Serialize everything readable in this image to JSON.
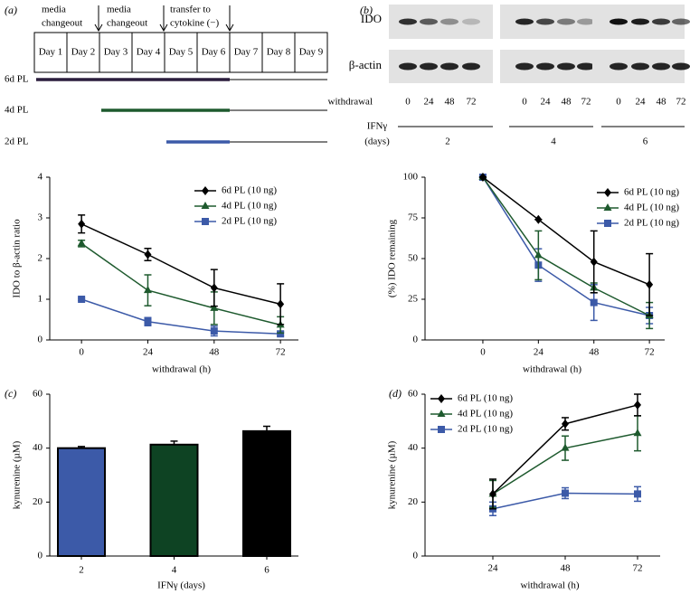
{
  "panel_a": {
    "panel_label": "(a)",
    "annotations": [
      [
        "media",
        "changeout"
      ],
      [
        "media",
        "changeout"
      ],
      [
        "transfer to",
        "cytokine (−)"
      ]
    ],
    "days": [
      "Day 1",
      "Day 2",
      "Day 3",
      "Day 4",
      "Day 5",
      "Day 6",
      "Day 7",
      "Day 8",
      "Day 9"
    ],
    "rows": [
      {
        "label": "6d PL",
        "color": "#2b1d3d"
      },
      {
        "label": "4d PL",
        "color": "#1e5a2e"
      },
      {
        "label": "2d PL",
        "color": "#3c5aa8"
      }
    ]
  },
  "panel_b": {
    "panel_label": "(b)",
    "rows": [
      "IDO",
      "β-actin"
    ],
    "withdrawal_label": "withdrawal",
    "groups": [
      {
        "lanes": [
          "0",
          "24",
          "48",
          "72"
        ],
        "label": "2"
      },
      {
        "lanes": [
          "0",
          "24",
          "48",
          "72"
        ],
        "label": "4"
      },
      {
        "lanes": [
          "0",
          "24",
          "48",
          "72"
        ],
        "label": "6"
      }
    ],
    "ifn_label": [
      "IFNγ",
      "(days)"
    ]
  },
  "chart_data": [
    {
      "type": "line",
      "y_label": "IDO to β-actin ratio",
      "x_label": "withdrawal  (h)",
      "x": [
        0,
        24,
        48,
        72
      ],
      "xlim": [
        -11.5,
        78.5
      ],
      "xticks": [
        0,
        24,
        48,
        72
      ],
      "ylim": [
        0,
        4
      ],
      "yticks": [
        0,
        1,
        2,
        3,
        4
      ],
      "series": [
        {
          "name": "6d PL (10 ng)",
          "color": "#000000",
          "marker": "diamond",
          "values": [
            2.85,
            2.1,
            1.28,
            0.88
          ],
          "errors": [
            0.22,
            0.15,
            0.45,
            0.5
          ]
        },
        {
          "name": "4d PL (10 ng)",
          "color": "#1e5a2e",
          "marker": "triangle",
          "values": [
            2.37,
            1.22,
            0.78,
            0.37
          ],
          "errors": [
            0.08,
            0.38,
            0.4,
            0.2
          ]
        },
        {
          "name": "2d PL (10 ng)",
          "color": "#3c5aa8",
          "marker": "square",
          "values": [
            1.0,
            0.45,
            0.22,
            0.15
          ],
          "errors": [
            0.03,
            0.1,
            0.12,
            0.05
          ]
        }
      ]
    },
    {
      "type": "line",
      "y_label": "(%) IDO remaining",
      "x_label": "withdrawal (h)",
      "x": [
        0,
        24,
        48,
        72
      ],
      "xlim": [
        -25,
        78.6
      ],
      "xticks": [
        0,
        24,
        48,
        72
      ],
      "ylim": [
        0,
        100
      ],
      "yticks": [
        0,
        25,
        50,
        75,
        100
      ],
      "series": [
        {
          "name": "6d PL (10 ng)",
          "color": "#000000",
          "marker": "diamond",
          "values": [
            100,
            74,
            48,
            34
          ],
          "errors": [
            0,
            0,
            19,
            19
          ]
        },
        {
          "name": "4d PL (10 ng)",
          "color": "#1e5a2e",
          "marker": "triangle",
          "values": [
            100,
            52,
            32,
            15
          ],
          "errors": [
            0,
            15,
            3,
            8
          ]
        },
        {
          "name": "2d PL (10 ng)",
          "color": "#3c5aa8",
          "marker": "square",
          "values": [
            100,
            46,
            23,
            15
          ],
          "errors": [
            0,
            10,
            11,
            5
          ]
        }
      ]
    },
    {
      "type": "bar",
      "panel_label": "(c)",
      "y_label": "kynurenine (µM)",
      "x_label": "IFNγ (days)",
      "categories": [
        "2",
        "4",
        "6"
      ],
      "values": [
        40,
        41.3,
        46.3
      ],
      "errors": [
        0.6,
        1.3,
        1.8
      ],
      "colors": [
        "#3c5aa8",
        "#0e4323",
        "#000000"
      ],
      "ylim": [
        0,
        60
      ],
      "yticks": [
        0,
        20,
        40,
        60
      ]
    },
    {
      "type": "line",
      "panel_label": "(d)",
      "y_label": "kynurenine (µM)",
      "x_label": "withdrawal (h)",
      "x": [
        24,
        48,
        72
      ],
      "xlim": [
        1.5,
        79.5
      ],
      "xticks": [
        24,
        48,
        72
      ],
      "ylim": [
        0,
        60
      ],
      "yticks": [
        0,
        20,
        40,
        60
      ],
      "series": [
        {
          "name": "6d PL (10 ng)",
          "color": "#000000",
          "marker": "diamond",
          "values": [
            23,
            49,
            56
          ],
          "errors": [
            5.5,
            2.3,
            4
          ]
        },
        {
          "name": "4d PL (10 ng)",
          "color": "#1e5a2e",
          "marker": "triangle",
          "values": [
            23,
            40,
            45.5
          ],
          "errors": [
            5,
            4.5,
            6.5
          ]
        },
        {
          "name": "2d PL (10 ng)",
          "color": "#3c5aa8",
          "marker": "square",
          "values": [
            17.5,
            23.3,
            23
          ],
          "errors": [
            2.5,
            2,
            2.7
          ]
        }
      ]
    }
  ]
}
